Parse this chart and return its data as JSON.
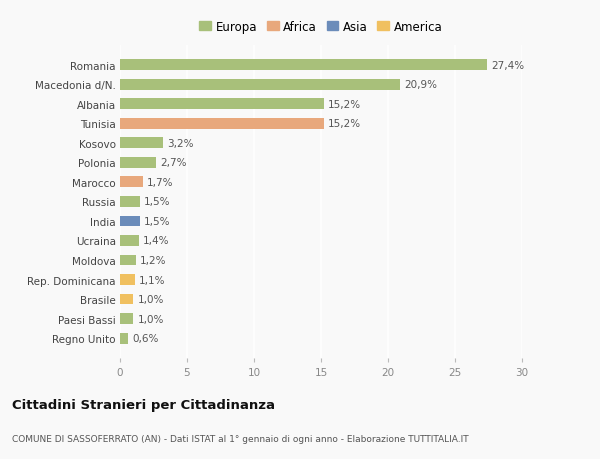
{
  "categories": [
    "Romania",
    "Macedonia d/N.",
    "Albania",
    "Tunisia",
    "Kosovo",
    "Polonia",
    "Marocco",
    "Russia",
    "India",
    "Ucraina",
    "Moldova",
    "Rep. Dominicana",
    "Brasile",
    "Paesi Bassi",
    "Regno Unito"
  ],
  "values": [
    27.4,
    20.9,
    15.2,
    15.2,
    3.2,
    2.7,
    1.7,
    1.5,
    1.5,
    1.4,
    1.2,
    1.1,
    1.0,
    1.0,
    0.6
  ],
  "labels": [
    "27,4%",
    "20,9%",
    "15,2%",
    "15,2%",
    "3,2%",
    "2,7%",
    "1,7%",
    "1,5%",
    "1,5%",
    "1,4%",
    "1,2%",
    "1,1%",
    "1,0%",
    "1,0%",
    "0,6%"
  ],
  "continent": [
    "Europa",
    "Europa",
    "Europa",
    "Africa",
    "Europa",
    "Europa",
    "Africa",
    "Europa",
    "Asia",
    "Europa",
    "Europa",
    "America",
    "America",
    "Europa",
    "Europa"
  ],
  "colors": {
    "Europa": "#a8c07a",
    "Africa": "#e8a87c",
    "Asia": "#6b8cba",
    "America": "#f0c060"
  },
  "xlim": [
    0,
    30
  ],
  "xticks": [
    0,
    5,
    10,
    15,
    20,
    25,
    30
  ],
  "title": "Cittadini Stranieri per Cittadinanza",
  "subtitle": "COMUNE DI SASSOFERRATO (AN) - Dati ISTAT al 1° gennaio di ogni anno - Elaborazione TUTTITALIA.IT",
  "background_color": "#f9f9f9",
  "grid_color": "#ffffff",
  "bar_height": 0.55
}
